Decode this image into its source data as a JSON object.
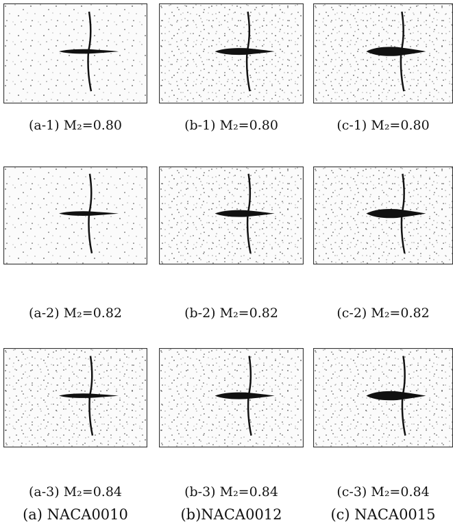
{
  "rows": [
    [
      "(a-1) M₂=0.80",
      "(b-1) M₂=0.80",
      "(c-1) M₂=0.80"
    ],
    [
      "(a-2) M₂=0.82",
      "(b-2) M₂=0.82",
      "(c-2) M₂=0.82"
    ],
    [
      "(a-3) M₂=0.84",
      "(b-3) M₂=0.84",
      "(c-3) M₂=0.84"
    ]
  ],
  "columns": [
    "(a) NACA0010",
    "(b)NACA0012",
    "(c) NACA0015"
  ]
}
